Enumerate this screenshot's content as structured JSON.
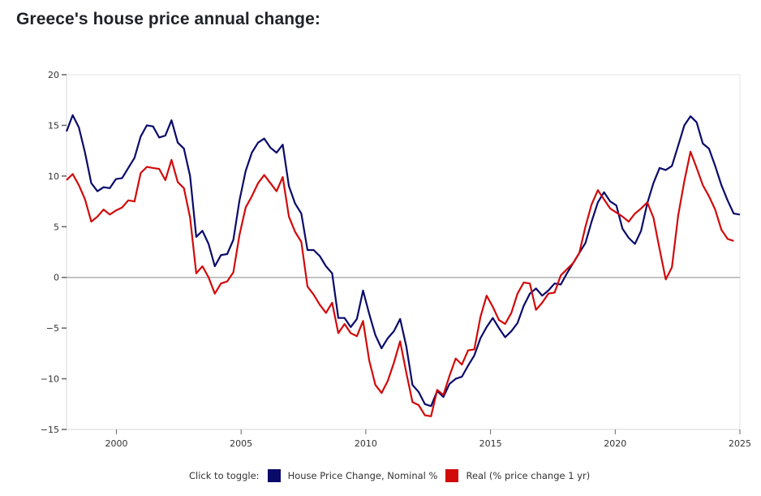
{
  "title": "Greece's house price annual change:",
  "legend": {
    "label": "Click to toggle:",
    "items": [
      {
        "name": "House Price Change, Nominal %",
        "color": "#0a0a6b"
      },
      {
        "name": "Real (% price change 1 yr)",
        "color": "#d10a0a"
      }
    ]
  },
  "chart_data": {
    "type": "line",
    "title": "Greece's house price annual change:",
    "xlabel": "",
    "ylabel": "",
    "x_start": "1998 Q1",
    "x_frequency": "quarterly",
    "xlim": [
      1998.0,
      2025.0
    ],
    "ylim": [
      -15,
      20
    ],
    "x_ticks": [
      "2000",
      "2005",
      "2010",
      "2015",
      "2020",
      "2025"
    ],
    "y_ticks": [
      "20",
      "15",
      "10",
      "5",
      "0",
      "−5",
      "−10",
      "−15"
    ],
    "zero_line": true,
    "grid": false,
    "legend_position": "bottom",
    "series": [
      {
        "name": "House Price Change, Nominal %",
        "color": "#0a0a6b",
        "values": [
          14.4,
          16.0,
          14.8,
          12.3,
          9.3,
          8.5,
          8.9,
          8.8,
          9.7,
          9.8,
          10.8,
          11.8,
          13.9,
          15.0,
          14.9,
          13.8,
          14.0,
          15.5,
          13.3,
          12.7,
          10.0,
          4.0,
          4.6,
          3.3,
          1.1,
          2.2,
          2.3,
          3.7,
          7.6,
          10.5,
          12.3,
          13.3,
          13.7,
          12.8,
          12.3,
          13.1,
          9.0,
          7.3,
          6.3,
          2.7,
          2.7,
          2.1,
          1.1,
          0.4,
          -4.0,
          -4.0,
          -4.9,
          -4.1,
          -1.3,
          -3.6,
          -5.7,
          -7.0,
          -6.0,
          -5.3,
          -4.1,
          -6.8,
          -10.6,
          -11.3,
          -12.5,
          -12.7,
          -11.2,
          -11.8,
          -10.5,
          -10.0,
          -9.8,
          -8.7,
          -7.7,
          -6.0,
          -4.9,
          -4.0,
          -5.0,
          -5.9,
          -5.3,
          -4.5,
          -2.8,
          -1.6,
          -1.1,
          -1.8,
          -1.3,
          -0.6,
          -0.7,
          0.4,
          1.4,
          2.4,
          3.4,
          5.5,
          7.4,
          8.4,
          7.5,
          7.1,
          4.8,
          3.9,
          3.3,
          4.6,
          7.3,
          9.3,
          10.8,
          10.6,
          11.0,
          13.0,
          15.0,
          15.9,
          15.3,
          13.2,
          12.7,
          11.0,
          9.1,
          7.6,
          6.3,
          6.2
        ]
      },
      {
        "name": "Real (% price change 1 yr)",
        "color": "#d10a0a",
        "values": [
          9.6,
          10.2,
          9.1,
          7.7,
          5.5,
          6.0,
          6.7,
          6.2,
          6.6,
          6.9,
          7.6,
          7.5,
          10.3,
          10.9,
          10.8,
          10.7,
          9.6,
          11.6,
          9.4,
          8.8,
          5.9,
          0.4,
          1.1,
          0.0,
          -1.6,
          -0.6,
          -0.4,
          0.5,
          4.2,
          6.9,
          8.0,
          9.3,
          10.1,
          9.3,
          8.5,
          9.9,
          6.0,
          4.5,
          3.5,
          -0.9,
          -1.7,
          -2.7,
          -3.5,
          -2.5,
          -5.5,
          -4.6,
          -5.5,
          -5.8,
          -4.3,
          -8.2,
          -10.6,
          -11.4,
          -10.2,
          -8.4,
          -6.3,
          -9.4,
          -12.3,
          -12.6,
          -13.6,
          -13.7,
          -11.1,
          -11.6,
          -9.7,
          -8.0,
          -8.6,
          -7.2,
          -7.1,
          -3.9,
          -1.8,
          -2.9,
          -4.2,
          -4.6,
          -3.5,
          -1.6,
          -0.5,
          -0.6,
          -3.2,
          -2.5,
          -1.6,
          -1.5,
          0.2,
          0.8,
          1.4,
          2.4,
          5.0,
          7.2,
          8.6,
          7.7,
          6.8,
          6.4,
          6.0,
          5.5,
          6.3,
          6.8,
          7.4,
          5.9,
          2.8,
          -0.2,
          1.0,
          6.1,
          9.5,
          12.4,
          10.8,
          9.1,
          8.0,
          6.7,
          4.7,
          3.8,
          3.6
        ]
      }
    ]
  }
}
